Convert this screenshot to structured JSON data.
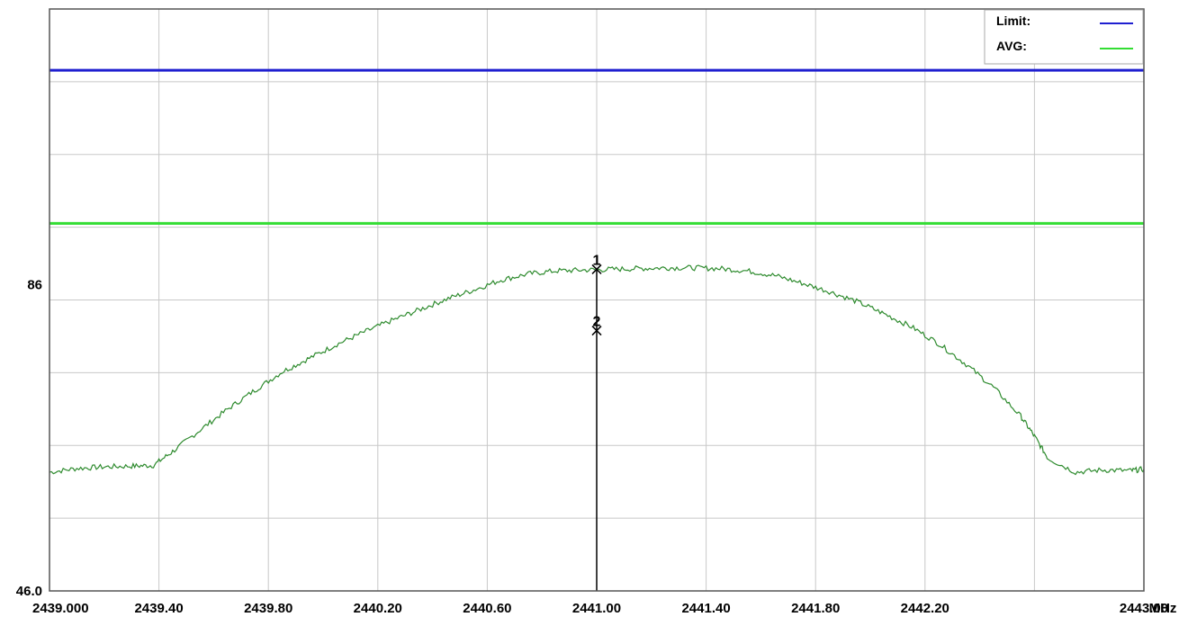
{
  "chart_data": {
    "type": "line",
    "x_unit": "MHz",
    "xlim": [
      2439.0,
      2443.0
    ],
    "ylim": [
      46.0,
      122.0
    ],
    "grid": true,
    "legend_position": "top-right",
    "x_tick_labels": [
      {
        "value": 2439.0,
        "label": "2439.000"
      },
      {
        "value": 2439.4,
        "label": "2439.40"
      },
      {
        "value": 2439.8,
        "label": "2439.80"
      },
      {
        "value": 2440.2,
        "label": "2440.20"
      },
      {
        "value": 2440.6,
        "label": "2440.60"
      },
      {
        "value": 2441.0,
        "label": "2441.00"
      },
      {
        "value": 2441.4,
        "label": "2441.40"
      },
      {
        "value": 2441.8,
        "label": "2441.80"
      },
      {
        "value": 2442.2,
        "label": "2442.20"
      },
      {
        "value": 2443.0,
        "label": "2443.00"
      }
    ],
    "y_tick_labels": [
      {
        "value": 86,
        "label": "86"
      },
      {
        "value": 46.0,
        "label": "46.0"
      }
    ],
    "legend": [
      {
        "name": "Limit:",
        "color": "#1f1fd0"
      },
      {
        "name": "AVG:",
        "color": "#33dd33"
      }
    ],
    "limit_lines": [
      {
        "name": "Limit:",
        "y": 114.0,
        "color": "#1f1fd0"
      },
      {
        "name": "AVG:",
        "y": 94.0,
        "color": "#33dd33"
      }
    ],
    "series": [
      {
        "color": "#2e8b2e",
        "x": [
          2439.0,
          2439.1,
          2439.2,
          2439.3,
          2439.38,
          2439.45,
          2439.55,
          2439.65,
          2439.75,
          2439.85,
          2439.95,
          2440.05,
          2440.15,
          2440.25,
          2440.35,
          2440.45,
          2440.55,
          2440.65,
          2440.75,
          2440.85,
          2440.95,
          2441.05,
          2441.15,
          2441.25,
          2441.35,
          2441.45,
          2441.55,
          2441.65,
          2441.75,
          2441.85,
          2441.95,
          2442.05,
          2442.15,
          2442.25,
          2442.35,
          2442.45,
          2442.55,
          2442.6,
          2442.65,
          2442.75,
          2442.85,
          2442.95,
          2443.0
        ],
        "y": [
          61.5,
          62.0,
          62.2,
          62.3,
          62.4,
          64.2,
          67.0,
          69.7,
          72.2,
          74.6,
          76.4,
          78.2,
          79.8,
          81.3,
          82.7,
          84.1,
          85.3,
          86.6,
          87.4,
          87.8,
          87.9,
          88.0,
          88.1,
          88.2,
          88.2,
          88.1,
          87.8,
          87.2,
          86.2,
          85.1,
          83.8,
          82.2,
          80.5,
          78.3,
          75.6,
          72.6,
          68.8,
          66.2,
          63.3,
          61.5,
          61.8,
          61.7,
          61.9
        ]
      }
    ],
    "markers": [
      {
        "label": "1",
        "x": 2441.0,
        "y": 88.0
      },
      {
        "label": "2",
        "x": 2441.0,
        "y": 80.0
      }
    ]
  }
}
